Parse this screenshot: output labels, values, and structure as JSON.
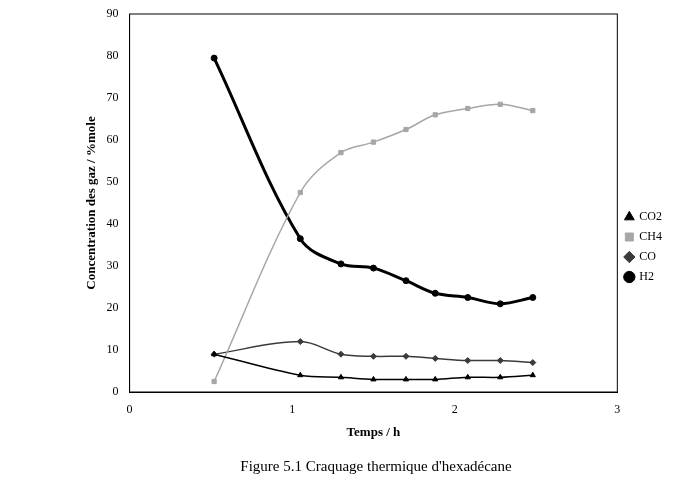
{
  "chart_data": {
    "type": "line",
    "title": "Figure 5.1 Craquage thermique d'hexadécane",
    "x_label": "Temps / h",
    "y_label": "Concentration des gaz / %mole",
    "x": [
      0.52,
      1.05,
      1.3,
      1.5,
      1.7,
      1.88,
      2.08,
      2.28,
      2.48
    ],
    "series": [
      {
        "name": "CO2",
        "color": "#000000",
        "marker": "triangle",
        "line_style": "solid",
        "values": [
          9,
          4,
          3.5,
          3,
          3,
          3,
          3.5,
          3.5,
          4
        ]
      },
      {
        "name": "CH4",
        "color": "#a6a6a6",
        "marker": "square",
        "line_style": "solid",
        "values": [
          2.5,
          47.5,
          57,
          59.5,
          62.5,
          66,
          67.5,
          68.5,
          67
        ]
      },
      {
        "name": "CO",
        "color": "#3a3a3a",
        "marker": "diamond",
        "line_style": "solid",
        "values": [
          9,
          12,
          9,
          8.5,
          8.5,
          8,
          7.5,
          7.5,
          7
        ]
      },
      {
        "name": "H2",
        "color": "#000000",
        "marker": "circle",
        "line_style": "solid",
        "values": [
          79.5,
          36.5,
          30.5,
          29.5,
          26.5,
          23.5,
          22.5,
          21,
          22.5
        ]
      }
    ],
    "xlim": [
      0,
      3
    ],
    "xticks": [
      0,
      1,
      2,
      3
    ],
    "ylim": [
      0,
      90
    ],
    "yticks": [
      0,
      10,
      20,
      30,
      40,
      50,
      60,
      70,
      80,
      90
    ],
    "grid": false,
    "legend": "right"
  }
}
